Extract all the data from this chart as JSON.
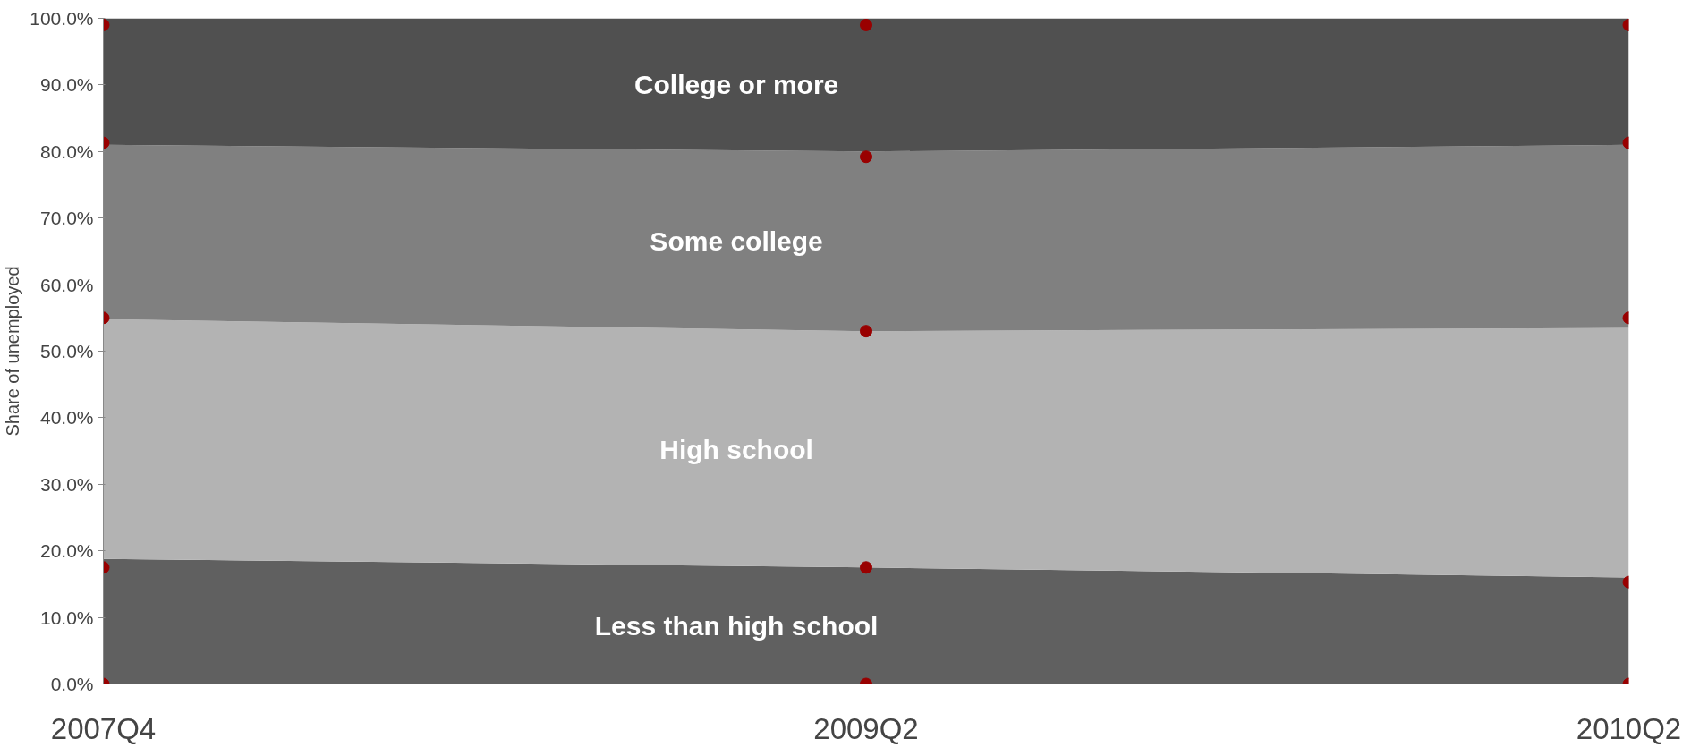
{
  "chart_data": {
    "type": "area",
    "stacked": true,
    "ylabel": "Share of unemployed",
    "categories": [
      "2007Q4",
      "2009Q2",
      "2010Q2"
    ],
    "ylim": [
      0,
      100
    ],
    "yticks": [
      {
        "value": 0,
        "label": "0.0%"
      },
      {
        "value": 10,
        "label": "10.0%"
      },
      {
        "value": 20,
        "label": "20.0%"
      },
      {
        "value": 30,
        "label": "30.0%"
      },
      {
        "value": 40,
        "label": "40.0%"
      },
      {
        "value": 50,
        "label": "50.0%"
      },
      {
        "value": 60,
        "label": "60.0%"
      },
      {
        "value": 70,
        "label": "70.0%"
      },
      {
        "value": 80,
        "label": "80.0%"
      },
      {
        "value": 90,
        "label": "90.0%"
      },
      {
        "value": 100,
        "label": "100.0%"
      }
    ],
    "series": [
      {
        "name": "Less than high school",
        "color": "#606060",
        "values": [
          18.8,
          17.5,
          16
        ]
      },
      {
        "name": "High school",
        "color": "#b3b3b3",
        "values": [
          36,
          35.5,
          37.5
        ]
      },
      {
        "name": "Some college",
        "color": "#808080",
        "values": [
          26.2,
          27,
          27.5
        ]
      },
      {
        "name": "College or more",
        "color": "#505050",
        "values": [
          19,
          20,
          19
        ]
      },
      {
        "type": "scatter",
        "color": "#990000",
        "marker": "circle",
        "x": [
          "2007Q4",
          "2007Q4",
          "2007Q4",
          "2007Q4",
          "2007Q4",
          "2009Q2",
          "2009Q2",
          "2009Q2",
          "2009Q2",
          "2009Q2",
          "2010Q2",
          "2010Q2",
          "2010Q2",
          "2010Q2",
          "2010Q2"
        ],
        "values": [
          0,
          17.5,
          55,
          81.3,
          99,
          0,
          17.5,
          53,
          79.2,
          99,
          0,
          15.3,
          55,
          81.3,
          99
        ]
      }
    ]
  }
}
